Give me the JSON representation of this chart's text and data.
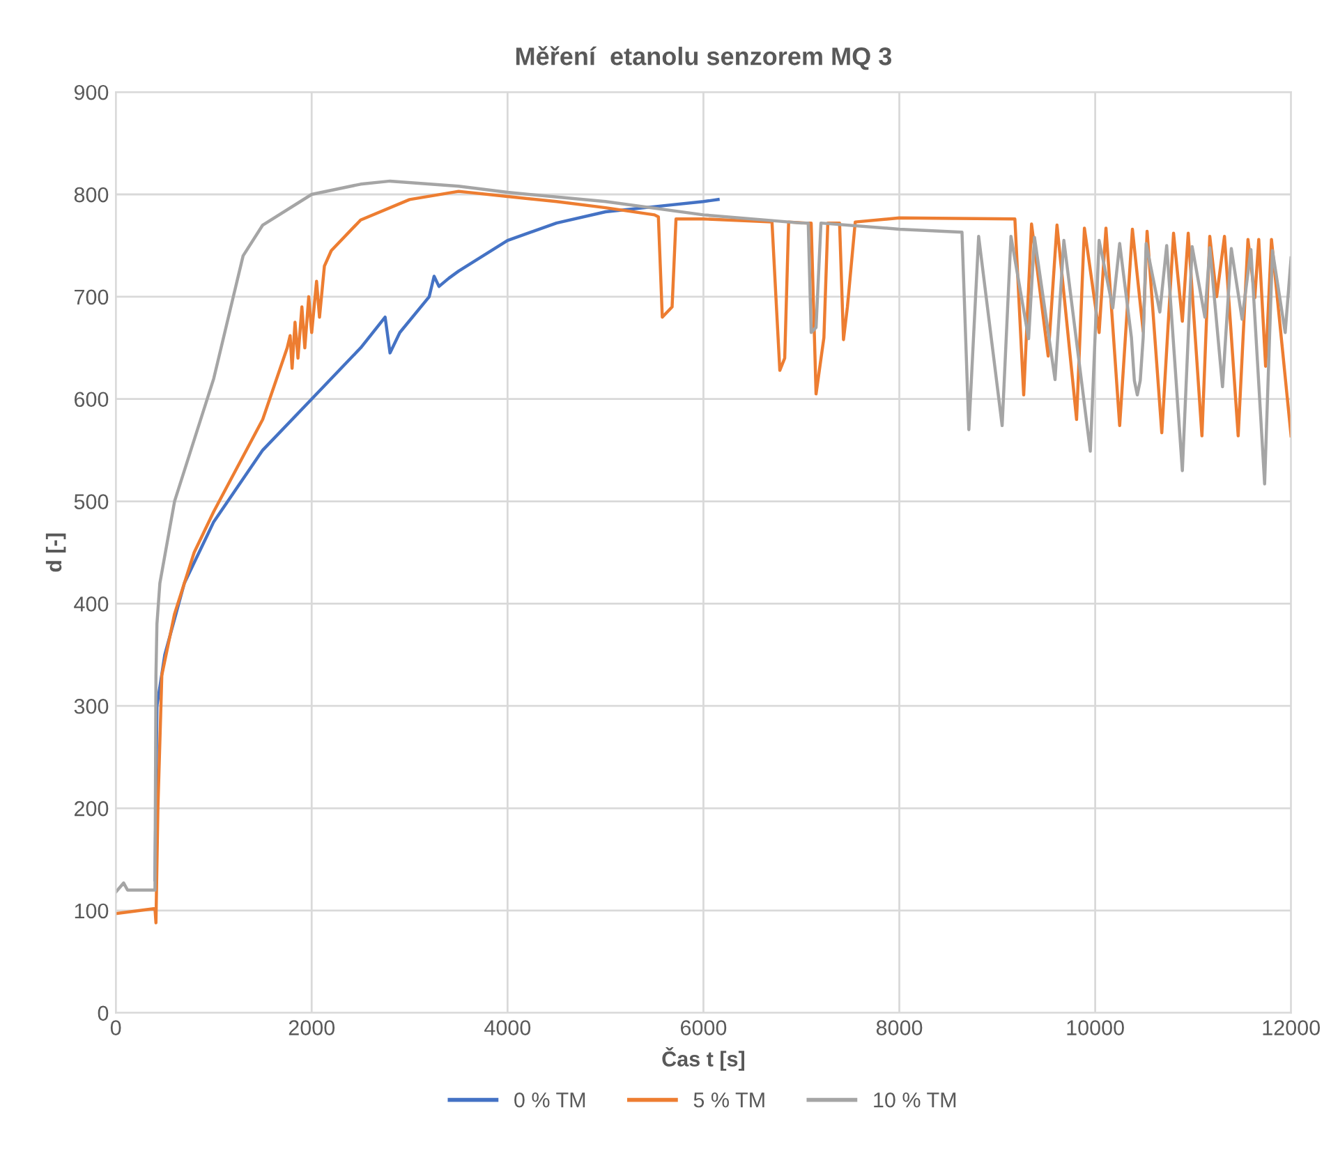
{
  "chart_data": {
    "type": "line",
    "title": "Měření  etanolu senzorem MQ 3",
    "xlabel": "Čas t [s]",
    "ylabel": "d [-]",
    "xlim": [
      0,
      12000
    ],
    "xticks": [
      0,
      2000,
      4000,
      6000,
      8000,
      10000,
      12000
    ],
    "ylim": [
      0,
      900
    ],
    "yticks": [
      0,
      100,
      200,
      300,
      400,
      500,
      600,
      700,
      800,
      900
    ],
    "grid": true,
    "legend": "bottom",
    "marker": "none",
    "line_style": "solid",
    "series": [
      {
        "name": "0 % TM",
        "color": "#4472c4",
        "x": [
          400,
          420,
          500,
          700,
          1000,
          1500,
          2000,
          2500,
          2750,
          2800,
          2900,
          3200,
          3250,
          3300,
          3400,
          3500,
          4000,
          4500,
          5000,
          5500,
          6000,
          6150
        ],
        "values": [
          130,
          300,
          350,
          420,
          480,
          550,
          600,
          650,
          680,
          645,
          665,
          700,
          720,
          710,
          718,
          725,
          755,
          772,
          783,
          788,
          793,
          795
        ]
      },
      {
        "name": "5 % TM",
        "color": "#ed7d31",
        "x": [
          0,
          400,
          410,
          430,
          470,
          600,
          800,
          1000,
          1500,
          1750,
          1780,
          1800,
          1830,
          1860,
          1900,
          1930,
          1970,
          2000,
          2050,
          2080,
          2130,
          2200,
          2500,
          3000,
          3500,
          4000,
          4500,
          5000,
          5500,
          5540,
          5580,
          5680,
          5720,
          6000,
          6700,
          6740,
          6780,
          6830,
          6870,
          7050,
          7100,
          7150,
          7230,
          7270,
          7390,
          7430,
          7470,
          7550,
          8000,
          9180,
          9270,
          9350,
          9520,
          9610,
          9810,
          9890,
          10040,
          10110,
          10250,
          10380,
          10490,
          10530,
          10680,
          10800,
          10890,
          10950,
          11090,
          11170,
          11240,
          11320,
          11460,
          11560,
          11630,
          11670,
          11740,
          11800,
          12000
        ],
        "values": [
          97,
          102,
          88,
          200,
          330,
          390,
          450,
          490,
          580,
          650,
          662,
          630,
          675,
          640,
          690,
          650,
          700,
          665,
          715,
          680,
          730,
          745,
          775,
          795,
          803,
          798,
          793,
          787,
          780,
          778,
          680,
          690,
          776,
          776,
          773,
          700,
          628,
          640,
          773,
          772,
          772,
          605,
          660,
          772,
          772,
          658,
          690,
          773,
          777,
          776,
          604,
          771,
          642,
          770,
          580,
          767,
          665,
          767,
          574,
          766,
          666,
          764,
          567,
          762,
          676,
          762,
          564,
          759,
          700,
          759,
          564,
          756,
          699,
          756,
          632,
          756,
          564
        ]
      },
      {
        "name": "10 % TM",
        "color": "#a5a5a5",
        "x": [
          0,
          80,
          120,
          400,
          410,
          420,
          450,
          600,
          800,
          1000,
          1200,
          1300,
          1500,
          2000,
          2500,
          2800,
          3500,
          4000,
          5000,
          6000,
          7000,
          7070,
          7100,
          7150,
          7200,
          8000,
          8640,
          8710,
          8810,
          9050,
          9140,
          9320,
          9380,
          9590,
          9680,
          9950,
          10040,
          10180,
          10250,
          10370,
          10400,
          10430,
          10460,
          10490,
          10520,
          10660,
          10730,
          10890,
          10990,
          11120,
          11170,
          11300,
          11390,
          11500,
          11590,
          11730,
          11810,
          11940,
          12000
        ],
        "values": [
          118,
          127,
          120,
          120,
          330,
          380,
          420,
          500,
          560,
          620,
          700,
          740,
          770,
          800,
          810,
          813,
          808,
          802,
          793,
          780,
          772,
          772,
          665,
          670,
          772,
          766,
          763,
          570,
          759,
          574,
          759,
          659,
          758,
          619,
          755,
          549,
          755,
          689,
          752,
          660,
          618,
          604,
          618,
          660,
          752,
          685,
          750,
          530,
          749,
          680,
          748,
          612,
          747,
          678,
          746,
          517,
          745,
          665,
          738
        ]
      }
    ]
  }
}
